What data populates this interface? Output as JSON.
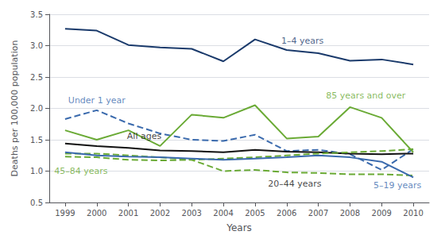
{
  "chart_data": {
    "type": "line",
    "x": [
      1999,
      2000,
      2001,
      2002,
      2003,
      2004,
      2005,
      2006,
      2007,
      2008,
      2009,
      2010
    ],
    "series": [
      {
        "name": "1–4 years",
        "color": "#1a3a6b",
        "line_style": "solid",
        "values": [
          3.27,
          3.24,
          3.01,
          2.97,
          2.95,
          2.75,
          3.1,
          2.93,
          2.88,
          2.76,
          2.78,
          2.7
        ]
      },
      {
        "name": "Under 1 year",
        "color": "#3a6aad",
        "line_style": "dashed",
        "values": [
          1.83,
          1.97,
          1.76,
          1.6,
          1.5,
          1.48,
          1.58,
          1.32,
          1.34,
          1.27,
          1.02,
          1.35
        ]
      },
      {
        "name": "85 years and over",
        "color": "#6aaa35",
        "line_style": "solid",
        "values": [
          1.65,
          1.5,
          1.65,
          1.4,
          1.9,
          1.85,
          2.05,
          1.52,
          1.55,
          2.02,
          1.85,
          1.3
        ]
      },
      {
        "name": "All ages",
        "color": "#111111",
        "line_style": "solid",
        "values": [
          1.44,
          1.4,
          1.37,
          1.33,
          1.32,
          1.3,
          1.34,
          1.31,
          1.3,
          1.28,
          1.27,
          1.28
        ]
      },
      {
        "name": "45–84 years",
        "color": "#6aaa35",
        "line_style": "dashed",
        "values": [
          1.23,
          1.22,
          1.18,
          1.17,
          1.18,
          1.2,
          1.22,
          1.25,
          1.28,
          1.3,
          1.32,
          1.35
        ]
      },
      {
        "name": "20–44 years",
        "color": "#6aaa35",
        "line_style": "dashed",
        "values": [
          1.28,
          1.28,
          1.25,
          1.22,
          1.18,
          1.0,
          1.02,
          0.98,
          0.97,
          0.95,
          0.95,
          0.93
        ]
      },
      {
        "name": "5–19 years",
        "color": "#3a6aad",
        "line_style": "solid",
        "values": [
          1.3,
          1.25,
          1.23,
          1.22,
          1.2,
          1.18,
          1.2,
          1.22,
          1.25,
          1.22,
          1.15,
          0.9
        ]
      }
    ],
    "annotations": [
      {
        "text": "1–4 years",
        "x": 2006.5,
        "y": 2.93,
        "color": "#1a3a6b"
      },
      {
        "text": "Under 1 year",
        "x": 2000.0,
        "y": 1.97,
        "color": "#3a6aad"
      },
      {
        "text": "85 years and over",
        "x": 2008.5,
        "y": 2.02,
        "color": "#6aaa35"
      },
      {
        "text": "All ages",
        "x": 2001.5,
        "y": 1.4,
        "color": "#111111"
      },
      {
        "text": "45–84 years",
        "x": 1999.5,
        "y": 1.18,
        "color": "#6aaa35"
      },
      {
        "text": "20–44 years",
        "x": 2005.5,
        "y": 1.0,
        "color": "#111111"
      },
      {
        "text": "5–19 years",
        "x": 2009.5,
        "y": 1.1,
        "color": "#3a6aad"
      }
    ],
    "xlim": [
      1998.5,
      2010.5
    ],
    "xticks": [
      1999,
      2000,
      2001,
      2002,
      2003,
      2004,
      2005,
      2006,
      2007,
      2008,
      2009,
      2010
    ],
    "ylim": [
      0.5,
      3.5
    ],
    "yticks": [
      0.5,
      {
        "value": 1,
        "label": "1.0"
      },
      1.5,
      {
        "value": 2,
        "label": "2.0"
      },
      2.5,
      {
        "value": 3,
        "label": "3.0"
      },
      3.5
    ],
    "xlabel": "Years",
    "ylabel": "Deaths per 100,000 population",
    "grid": true
  }
}
